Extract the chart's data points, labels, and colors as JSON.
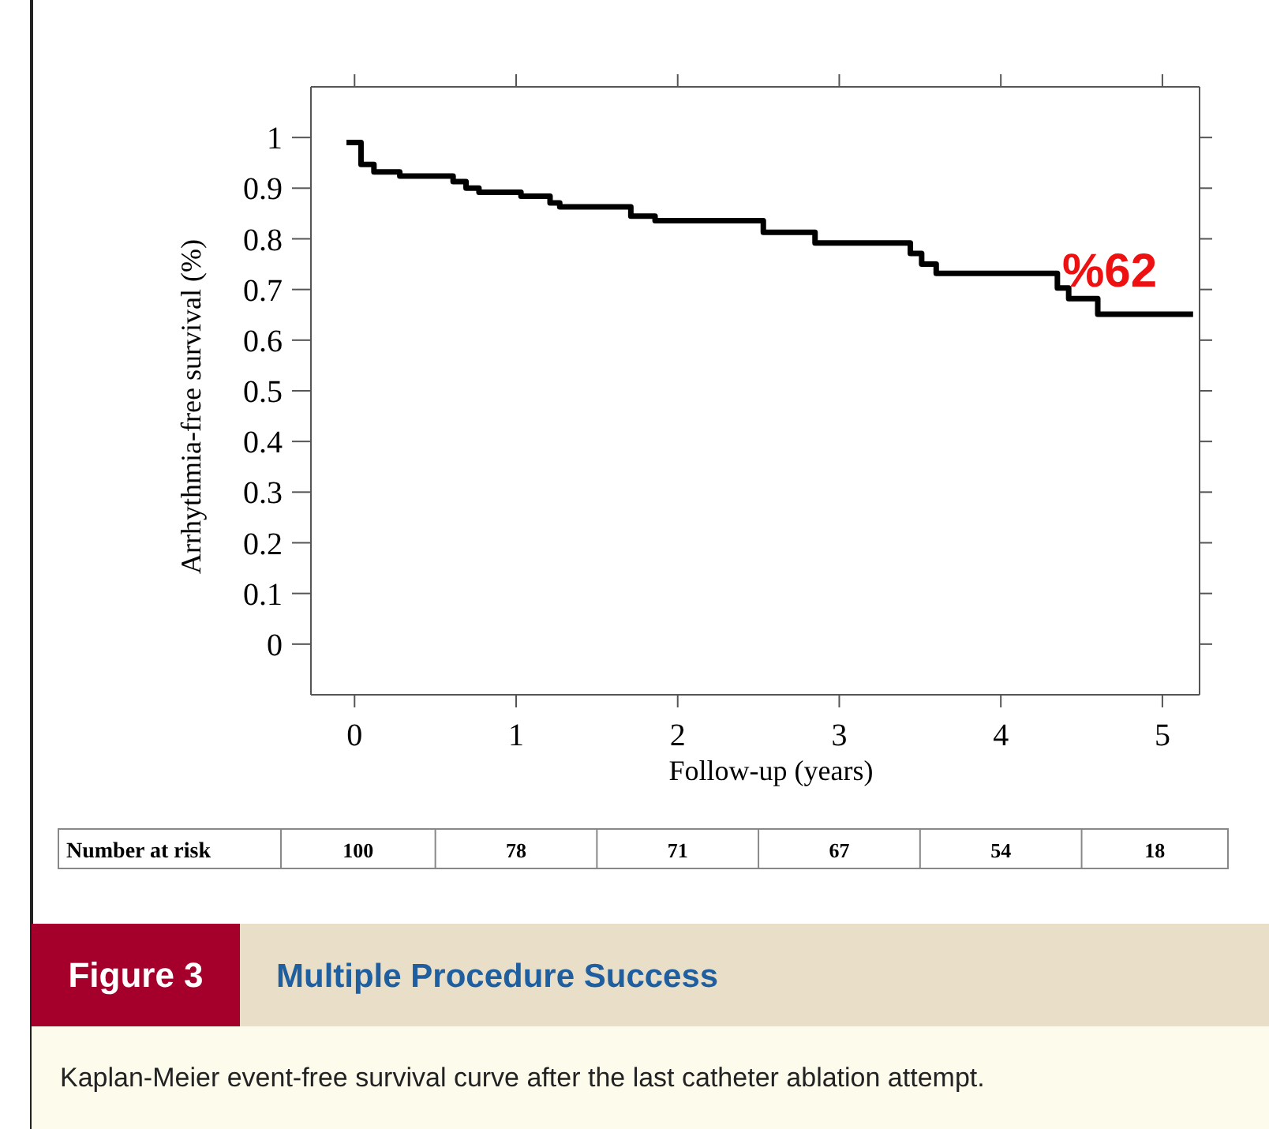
{
  "chart_data": {
    "type": "step",
    "title": "Figure 3",
    "subtitle": "Multiple Procedure Success",
    "xlabel": "Follow-up (years)",
    "ylabel": "Arrhythmia-free survival (%)",
    "x": [
      -0.05,
      0.04,
      0.12,
      0.28,
      0.61,
      0.69,
      0.77,
      1.03,
      1.21,
      1.27,
      1.71,
      1.86,
      2.53,
      2.85,
      3.44,
      3.51,
      3.6,
      4.35,
      4.42,
      4.6,
      5.19
    ],
    "series": [
      {
        "color": "#000000",
        "values": [
          0.99,
          0.947,
          0.932,
          0.924,
          0.913,
          0.9,
          0.892,
          0.884,
          0.871,
          0.863,
          0.845,
          0.836,
          0.813,
          0.792,
          0.771,
          0.75,
          0.732,
          0.703,
          0.682,
          0.651,
          0.651
        ]
      }
    ],
    "xlim": [
      -0.27,
      5.23
    ],
    "ylim": [
      -0.1,
      1.1
    ],
    "xticks": [
      0,
      1,
      2,
      3,
      4,
      5
    ],
    "yticks": [
      0,
      0.1,
      0.2,
      0.3,
      0.4,
      0.5,
      0.6,
      0.7,
      0.8,
      0.9,
      1
    ],
    "grid": false,
    "marker": "none",
    "line_style": "solid",
    "annotations": [
      "%62",
      "Number at risk",
      "100",
      "78",
      "71",
      "67",
      "54",
      "18",
      "Kaplan-Meier event-free survival curve after the last catheter ablation attempt."
    ]
  }
}
